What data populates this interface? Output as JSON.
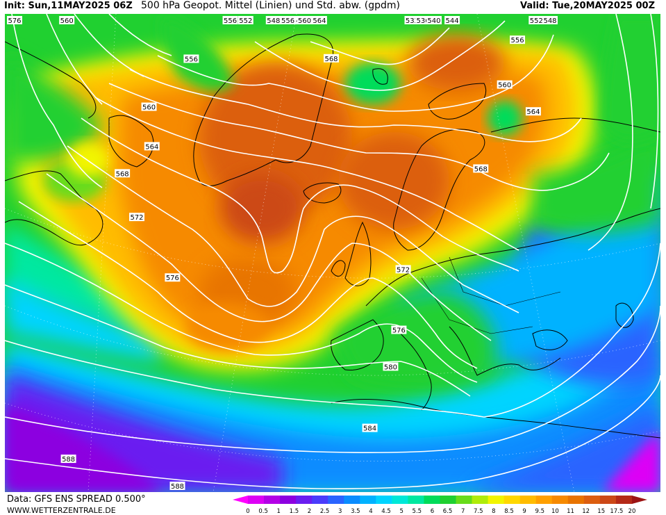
{
  "header": {
    "init": "Init: Sun,11MAY2025 06Z",
    "title": "500 hPa Geopot. Mittel (Linien) und Std. abw. (gpdm)",
    "valid": "Valid: Tue,20MAY2025 00Z"
  },
  "footer": {
    "data_source": "Data: GFS ENS SPREAD 0.500°",
    "website": "WWW.WETTERZENTRALE.DE"
  },
  "legend": {
    "ticks": [
      "0",
      "0.5",
      "1",
      "1.5",
      "2",
      "2.5",
      "3",
      "3.5",
      "4",
      "4.5",
      "5",
      "5.5",
      "6",
      "6.5",
      "7",
      "7.5",
      "8",
      "8.5",
      "9",
      "9.5",
      "10",
      "11",
      "12",
      "15",
      "17.5",
      "20"
    ],
    "colors": [
      "#ff00ff",
      "#dd00f5",
      "#b300e6",
      "#8c00e0",
      "#6a1ef0",
      "#4a3cfb",
      "#2a64ff",
      "#0a8cff",
      "#00b2ff",
      "#00d4ff",
      "#00e8d8",
      "#00e8a0",
      "#00dc5a",
      "#20d030",
      "#68dc1a",
      "#b0ec0a",
      "#f2f500",
      "#ffd800",
      "#ffbc00",
      "#ffa000",
      "#f68a00",
      "#e87400",
      "#dc5e10",
      "#cc4818",
      "#b42a18",
      "#9c1414"
    ]
  },
  "map": {
    "contour_labels": [
      {
        "text": "532",
        "lon": 35,
        "lat": 79
      },
      {
        "text": "536",
        "lon": 30,
        "lat": 76
      },
      {
        "text": "540",
        "lon": -15,
        "lat": 83
      },
      {
        "text": "540",
        "lon": 27,
        "lat": 73
      },
      {
        "text": "544",
        "lon": -22,
        "lat": 80
      },
      {
        "text": "544",
        "lon": 27,
        "lat": 70
      },
      {
        "text": "548",
        "lon": -28,
        "lat": 77
      },
      {
        "text": "548",
        "lon": 38,
        "lat": 62
      },
      {
        "text": "552",
        "lon": -33,
        "lat": 74
      },
      {
        "text": "552",
        "lon": 28,
        "lat": 57
      },
      {
        "text": "556",
        "lon": -30,
        "lat": 69
      },
      {
        "text": "556",
        "lon": -15,
        "lat": 68
      },
      {
        "text": "556",
        "lon": 22,
        "lat": 54
      },
      {
        "text": "556",
        "lon": -25,
        "lat": 54
      },
      {
        "text": "560",
        "lon": -60,
        "lat": 62
      },
      {
        "text": "560",
        "lon": -10,
        "lat": 63
      },
      {
        "text": "560",
        "lon": 18,
        "lat": 51
      },
      {
        "text": "560",
        "lon": -28,
        "lat": 49
      },
      {
        "text": "564",
        "lon": -62,
        "lat": 56
      },
      {
        "text": "564",
        "lon": -7,
        "lat": 60
      },
      {
        "text": "564",
        "lon": 20,
        "lat": 48
      },
      {
        "text": "564",
        "lon": -26,
        "lat": 46
      },
      {
        "text": "568",
        "lon": -5,
        "lat": 56
      },
      {
        "text": "568",
        "lon": -62,
        "lat": 50
      },
      {
        "text": "568",
        "lon": 12,
        "lat": 45
      },
      {
        "text": "568",
        "lon": -28,
        "lat": 43
      },
      {
        "text": "572",
        "lon": -62,
        "lat": 46
      },
      {
        "text": "572",
        "lon": -25,
        "lat": 40
      },
      {
        "text": "572",
        "lon": 2,
        "lat": 38
      },
      {
        "text": "576",
        "lon": -60,
        "lat": 42
      },
      {
        "text": "576",
        "lon": -20,
        "lat": 36
      },
      {
        "text": "576",
        "lon": 1,
        "lat": 33
      },
      {
        "text": "580",
        "lon": 0,
        "lat": 30
      },
      {
        "text": "584",
        "lon": -2,
        "lat": 25
      },
      {
        "text": "588",
        "lon": -24,
        "lat": 19
      },
      {
        "text": "588",
        "lon": -16,
        "lat": 19
      }
    ]
  }
}
